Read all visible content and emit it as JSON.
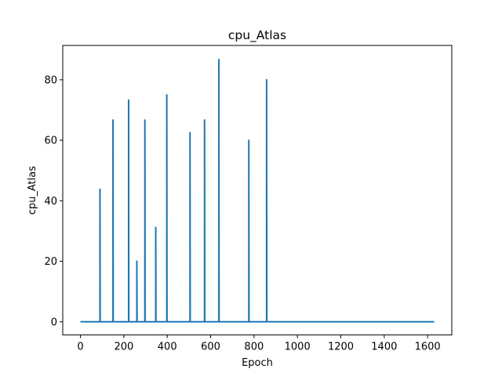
{
  "chart_data": {
    "type": "line",
    "title": "cpu_Atlas",
    "xlabel": "Epoch",
    "ylabel": "cpu_Atlas",
    "xlim": [
      -81.5,
      1711.5
    ],
    "ylim": [
      -4.35,
      91.35
    ],
    "xticks": [
      0,
      200,
      400,
      600,
      800,
      1000,
      1200,
      1400,
      1600
    ],
    "yticks": [
      0,
      20,
      40,
      60,
      80
    ],
    "grid": false,
    "series": [
      {
        "name": "cpu_Atlas",
        "color": "#1f77b4",
        "x": [
          0,
          90,
          90,
          91,
          150,
          150,
          151,
          222,
          222,
          223,
          260,
          260,
          261,
          297,
          297,
          298,
          347,
          347,
          348,
          398,
          398,
          399,
          505,
          505,
          506,
          572,
          572,
          573,
          638,
          638,
          639,
          776,
          776,
          777,
          858,
          858,
          859,
          1630
        ],
        "y": [
          0,
          0,
          43.8,
          0,
          0,
          66.7,
          0,
          0,
          73.3,
          0,
          0,
          20.0,
          0,
          0,
          66.7,
          0,
          0,
          31.2,
          0,
          0,
          75.0,
          0,
          0,
          62.5,
          0,
          0,
          66.7,
          0,
          0,
          86.7,
          0,
          0,
          60.0,
          0,
          0,
          80.0,
          0,
          0
        ]
      }
    ]
  }
}
